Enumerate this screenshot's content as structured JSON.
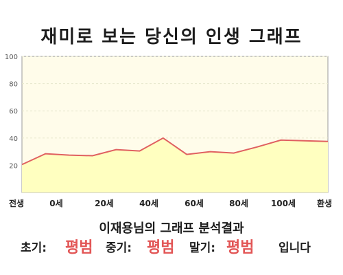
{
  "title": "재미로 보는 당신의 인생 그래프",
  "subtitle": "이재용님의 그래프 분석결과",
  "result": {
    "early_label": "초기:",
    "early_value": "평범",
    "mid_label": "중기:",
    "mid_value": "평범",
    "late_label": "말기:",
    "late_value": "평범",
    "suffix": "입니다"
  },
  "colors": {
    "line": "#e06060",
    "fill": "#ffffc0",
    "plot_bg": "#fffcea",
    "highlight": "#e25555"
  },
  "chart_data": {
    "type": "area",
    "title": "재미로 보는 당신의 인생 그래프",
    "xlabel": "",
    "ylabel": "",
    "ylim": [
      0,
      100
    ],
    "y_ticks": [
      "20",
      "40",
      "60",
      "80",
      "100"
    ],
    "x_tick_labels": [
      "전생",
      "0세",
      "20세",
      "40세",
      "60세",
      "80세",
      "100세",
      "환생"
    ],
    "grid": true,
    "values": [
      20.5,
      28.5,
      27.5,
      27,
      31.5,
      30.5,
      40,
      28,
      30,
      29,
      33.5,
      38.5,
      38,
      37.5
    ]
  }
}
